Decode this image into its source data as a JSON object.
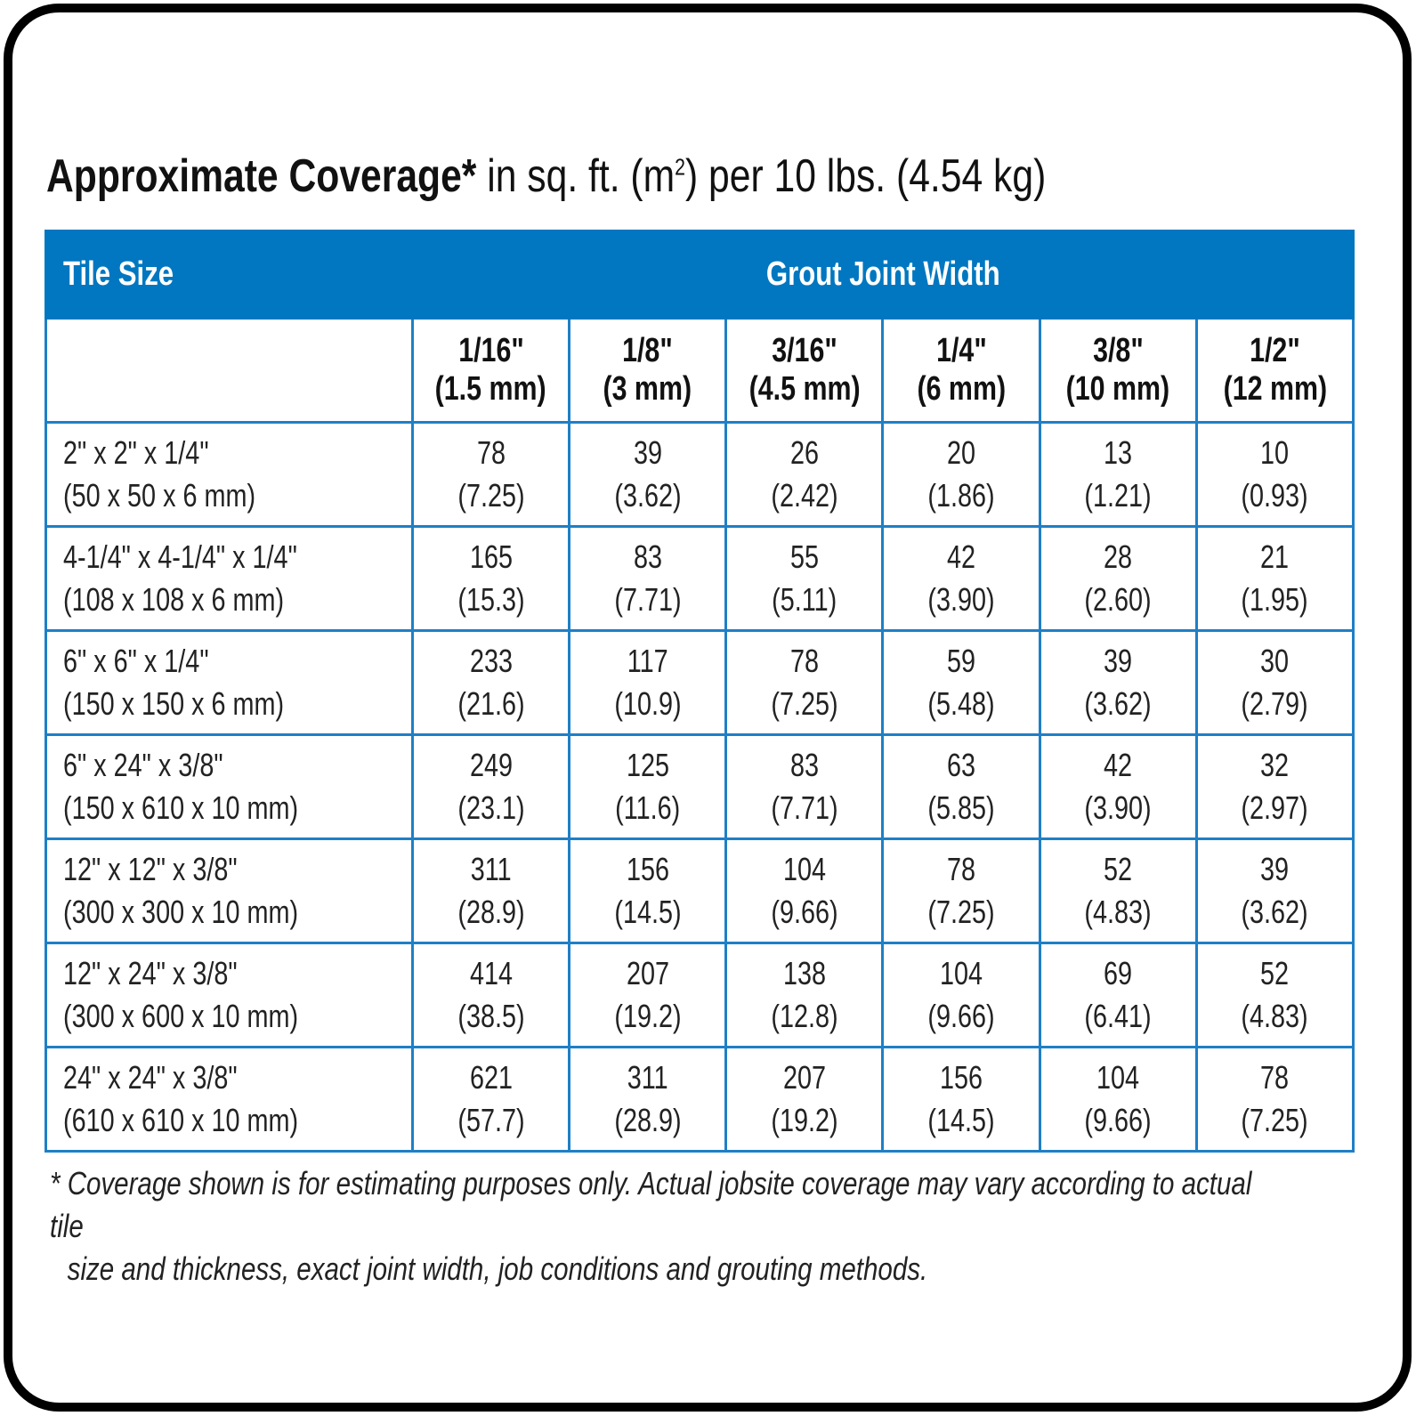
{
  "title": {
    "bold": "Approximate Coverage*",
    "rest_a": " in sq. ft. (m",
    "sup": "2",
    "rest_b": ") per 10 lbs. (4.54 kg)"
  },
  "colors": {
    "header_bg": "#0077c0",
    "grid": "#1f7fc6"
  },
  "table": {
    "tile_size_label": "Tile Size",
    "group_label": "Grout Joint Width",
    "columns": [
      {
        "in": "1/16\"",
        "mm": "(1.5 mm)"
      },
      {
        "in": "1/8\"",
        "mm": "(3 mm)"
      },
      {
        "in": "3/16\"",
        "mm": "(4.5 mm)"
      },
      {
        "in": "1/4\"",
        "mm": "(6 mm)"
      },
      {
        "in": "3/8\"",
        "mm": "(10 mm)"
      },
      {
        "in": "1/2\"",
        "mm": "(12 mm)"
      }
    ],
    "rows": [
      {
        "size_in": "2\" x 2\" x 1/4\"",
        "size_mm": "(50 x 50 x 6 mm)",
        "cells": [
          [
            "78",
            "(7.25)"
          ],
          [
            "39",
            "(3.62)"
          ],
          [
            "26",
            "(2.42)"
          ],
          [
            "20",
            "(1.86)"
          ],
          [
            "13",
            "(1.21)"
          ],
          [
            "10",
            "(0.93)"
          ]
        ]
      },
      {
        "size_in": "4-1/4\" x 4-1/4\" x 1/4\"",
        "size_mm": "(108 x 108 x 6 mm)",
        "cells": [
          [
            "165",
            "(15.3)"
          ],
          [
            "83",
            "(7.71)"
          ],
          [
            "55",
            "(5.11)"
          ],
          [
            "42",
            "(3.90)"
          ],
          [
            "28",
            "(2.60)"
          ],
          [
            "21",
            "(1.95)"
          ]
        ]
      },
      {
        "size_in": "6\" x 6\" x 1/4\"",
        "size_mm": "(150 x 150 x 6 mm)",
        "cells": [
          [
            "233",
            "(21.6)"
          ],
          [
            "117",
            "(10.9)"
          ],
          [
            "78",
            "(7.25)"
          ],
          [
            "59",
            "(5.48)"
          ],
          [
            "39",
            "(3.62)"
          ],
          [
            "30",
            "(2.79)"
          ]
        ]
      },
      {
        "size_in": "6\" x 24\" x 3/8\"",
        "size_mm": "(150 x 610 x 10 mm)",
        "cells": [
          [
            "249",
            "(23.1)"
          ],
          [
            "125",
            "(11.6)"
          ],
          [
            "83",
            "(7.71)"
          ],
          [
            "63",
            "(5.85)"
          ],
          [
            "42",
            "(3.90)"
          ],
          [
            "32",
            "(2.97)"
          ]
        ]
      },
      {
        "size_in": "12\" x 12\" x 3/8\"",
        "size_mm": "(300 x 300 x 10 mm)",
        "cells": [
          [
            "311",
            "(28.9)"
          ],
          [
            "156",
            "(14.5)"
          ],
          [
            "104",
            "(9.66)"
          ],
          [
            "78",
            "(7.25)"
          ],
          [
            "52",
            "(4.83)"
          ],
          [
            "39",
            "(3.62)"
          ]
        ]
      },
      {
        "size_in": "12\" x 24\" x 3/8\"",
        "size_mm": "(300 x 600 x 10 mm)",
        "cells": [
          [
            "414",
            "(38.5)"
          ],
          [
            "207",
            "(19.2)"
          ],
          [
            "138",
            "(12.8)"
          ],
          [
            "104",
            "(9.66)"
          ],
          [
            "69",
            "(6.41)"
          ],
          [
            "52",
            "(4.83)"
          ]
        ]
      },
      {
        "size_in": "24\" x 24\" x 3/8\"",
        "size_mm": "(610 x 610 x 10 mm)",
        "cells": [
          [
            "621",
            "(57.7)"
          ],
          [
            "311",
            "(28.9)"
          ],
          [
            "207",
            "(19.2)"
          ],
          [
            "156",
            "(14.5)"
          ],
          [
            "104",
            "(9.66)"
          ],
          [
            "78",
            "(7.25)"
          ]
        ]
      }
    ]
  },
  "footnote": {
    "line1": "* Coverage shown is for estimating purposes only. Actual jobsite coverage may vary according to actual tile",
    "line2": "size and thickness, exact joint width, job conditions and grouting methods."
  }
}
